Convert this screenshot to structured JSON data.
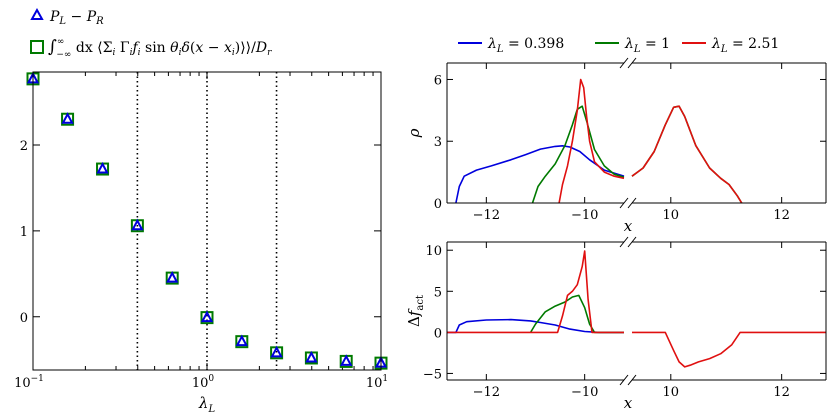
{
  "colors": {
    "blue": "#0000dd",
    "green": "#007a00",
    "red": "#e01010",
    "axis": "#000000"
  },
  "chart_data": [
    {
      "type": "scatter",
      "xscale": "log",
      "xlim": [
        0.1,
        10
      ],
      "ylim": [
        -0.62,
        2.85
      ],
      "xlabel": "λ_L",
      "ylabel": "",
      "xticks": [
        {
          "v": 0.1,
          "base": "10",
          "exp": "−1"
        },
        {
          "v": 1,
          "base": "10",
          "exp": "0"
        },
        {
          "v": 10,
          "base": "10",
          "exp": "1"
        }
      ],
      "yticks": [
        {
          "v": 0,
          "label": "0"
        },
        {
          "v": 1,
          "label": "1"
        },
        {
          "v": 2,
          "label": "2"
        }
      ],
      "vlines": [
        0.398,
        1,
        2.51
      ],
      "legend": {
        "placement": "top-left-outside",
        "entries": [
          "P_L − P_R",
          "∫_{−∞}^{∞} dx ⟨Σ_i Γ_i f_i sin θ_i δ(x − x_i)⟩ / D_r"
        ]
      },
      "series": [
        {
          "name": "P_L − P_R",
          "marker": "triangle",
          "color": "blue",
          "x": [
            0.1,
            0.158,
            0.251,
            0.398,
            0.631,
            1,
            1.585,
            2.512,
            3.981,
            6.31,
            10
          ],
          "y": [
            2.77,
            2.3,
            1.72,
            1.06,
            0.45,
            -0.01,
            -0.29,
            -0.42,
            -0.48,
            -0.52,
            -0.54
          ]
        },
        {
          "name": "integral",
          "marker": "square",
          "color": "green",
          "x": [
            0.1,
            0.158,
            0.251,
            0.398,
            0.631,
            1,
            1.585,
            2.512,
            3.981,
            6.31,
            10
          ],
          "y": [
            2.77,
            2.3,
            1.72,
            1.06,
            0.45,
            -0.01,
            -0.29,
            -0.42,
            -0.48,
            -0.52,
            -0.54
          ]
        }
      ]
    },
    {
      "type": "line",
      "broken_x_axis": true,
      "segments": [
        [
          -12.8,
          -9.2
        ],
        [
          9.3,
          12.8
        ]
      ],
      "ylim": [
        0,
        6.8
      ],
      "xlabel": "x",
      "ylabel": "ρ",
      "xticks": [
        {
          "v": -12,
          "label": "−12"
        },
        {
          "v": -10,
          "label": "−10"
        },
        {
          "v": 10,
          "label": "10"
        },
        {
          "v": 12,
          "label": "12"
        }
      ],
      "yticks": [
        {
          "v": 0,
          "label": "0"
        },
        {
          "v": 3,
          "label": "3"
        },
        {
          "v": 6,
          "label": "6"
        }
      ],
      "legend": {
        "placement": "top-outside",
        "entries": [
          "λ_L = 0.398",
          "λ_L = 1",
          "λ_L = 2.51"
        ]
      },
      "series": [
        {
          "name": "λ_L = 0.398",
          "color": "blue",
          "x": [
            -12.62,
            -12.55,
            -12.45,
            -12.2,
            -11.9,
            -11.5,
            -11.2,
            -10.9,
            -10.6,
            -10.45,
            -10.3,
            -10.1,
            -9.9,
            -9.6,
            -9.2
          ],
          "y": [
            0,
            0.8,
            1.3,
            1.6,
            1.8,
            2.1,
            2.35,
            2.62,
            2.75,
            2.78,
            2.72,
            2.5,
            2.1,
            1.6,
            1.3
          ]
        },
        {
          "name": "λ_L = 1",
          "color": "green",
          "x": [
            -11.06,
            -10.95,
            -10.8,
            -10.6,
            -10.4,
            -10.25,
            -10.15,
            -10.05,
            -9.95,
            -9.8,
            -9.6,
            -9.4,
            -9.2,
            9.3,
            9.5,
            9.7,
            9.9,
            10.05,
            10.15,
            10.25,
            10.45,
            10.7,
            10.9,
            11.05,
            11.2,
            11.28
          ],
          "y": [
            0,
            0.8,
            1.3,
            1.9,
            2.8,
            3.8,
            4.55,
            4.7,
            3.9,
            2.6,
            1.8,
            1.4,
            1.25,
            1.3,
            1.7,
            2.5,
            3.8,
            4.65,
            4.7,
            4.2,
            2.8,
            1.7,
            1.2,
            0.9,
            0.35,
            0
          ]
        },
        {
          "name": "λ_L = 2.51",
          "color": "red",
          "x": [
            -10.52,
            -10.45,
            -10.35,
            -10.25,
            -10.15,
            -10.08,
            -10.02,
            -9.96,
            -9.9,
            -9.8,
            -9.6,
            -9.4,
            -9.2,
            9.3,
            9.5,
            9.7,
            9.9,
            10.05,
            10.15,
            10.25,
            10.45,
            10.7,
            10.9,
            11.05,
            11.2,
            11.28
          ],
          "y": [
            0,
            0.9,
            1.8,
            3.0,
            4.5,
            6.0,
            5.6,
            4.2,
            3.0,
            2.0,
            1.5,
            1.3,
            1.2,
            1.3,
            1.7,
            2.5,
            3.8,
            4.65,
            4.7,
            4.2,
            2.8,
            1.7,
            1.2,
            0.9,
            0.35,
            0
          ]
        }
      ]
    },
    {
      "type": "line",
      "broken_x_axis": true,
      "segments": [
        [
          -12.8,
          -9.2
        ],
        [
          9.3,
          12.8
        ]
      ],
      "ylim": [
        -5.8,
        11
      ],
      "xlabel": "x",
      "ylabel": "Δf_act",
      "xticks": [
        {
          "v": -12,
          "label": "−12"
        },
        {
          "v": -10,
          "label": "−10"
        },
        {
          "v": 10,
          "label": "10"
        },
        {
          "v": 12,
          "label": "12"
        }
      ],
      "yticks": [
        {
          "v": -5,
          "label": "−5"
        },
        {
          "v": 0,
          "label": "0"
        },
        {
          "v": 5,
          "label": "5"
        },
        {
          "v": 10,
          "label": "10"
        }
      ],
      "series": [
        {
          "name": "λ_L = 0.398",
          "color": "blue",
          "x": [
            -12.8,
            -12.62,
            -12.55,
            -12.4,
            -12.0,
            -11.5,
            -11.1,
            -10.9,
            -10.6,
            -10.3,
            -10.0,
            -9.7,
            -9.2
          ],
          "y": [
            0,
            0,
            0.9,
            1.3,
            1.5,
            1.55,
            1.4,
            1.2,
            0.9,
            0.4,
            0.1,
            0,
            0
          ]
        },
        {
          "name": "λ_L = 1",
          "color": "green",
          "x": [
            -11.1,
            -11.0,
            -10.8,
            -10.6,
            -10.4,
            -10.25,
            -10.12,
            -10.0,
            -9.9,
            -9.8,
            -9.2
          ],
          "y": [
            0,
            1.0,
            2.5,
            3.2,
            3.7,
            4.3,
            4.5,
            3.0,
            1.0,
            0,
            0
          ]
        },
        {
          "name": "λ_L = 2.51",
          "color": "red",
          "x": [
            -12.8,
            -10.55,
            -10.45,
            -10.35,
            -10.25,
            -10.15,
            -10.05,
            -10.0,
            -9.93,
            -9.85,
            -9.2,
            9.3,
            9.9,
            10.05,
            10.15,
            10.25,
            10.35,
            10.5,
            10.7,
            10.9,
            11.1,
            11.25,
            12.8
          ],
          "y": [
            0,
            0,
            2.0,
            4.5,
            5.0,
            5.8,
            8.0,
            9.9,
            4.0,
            0,
            0,
            0,
            0,
            -2.2,
            -3.6,
            -4.2,
            -4.0,
            -3.6,
            -3.2,
            -2.6,
            -1.5,
            0,
            0
          ]
        }
      ]
    }
  ]
}
